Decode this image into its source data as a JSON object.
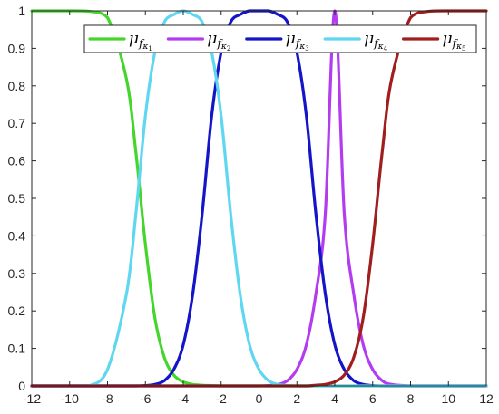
{
  "chart_data": {
    "type": "line",
    "title": "",
    "xlabel": "",
    "ylabel": "",
    "xlim": [
      -12,
      12
    ],
    "ylim": [
      0,
      1
    ],
    "xticks": [
      -12,
      -10,
      -8,
      -6,
      -4,
      -2,
      0,
      2,
      4,
      6,
      8,
      10,
      12
    ],
    "yticks": [
      0,
      0.1,
      0.2,
      0.3,
      0.4,
      0.5,
      0.6,
      0.7,
      0.8,
      0.9,
      1
    ],
    "grid": false,
    "legend": {
      "placement": "top",
      "orientation": "horizontal"
    },
    "x_sample": [
      -12,
      -11,
      -10,
      -9,
      -8,
      -7,
      -6.5,
      -6,
      -5.5,
      -5,
      -4.5,
      -4,
      -3.5,
      -3,
      -2.5,
      -2,
      -1.5,
      -1,
      -0.5,
      0,
      0.5,
      1,
      1.5,
      2,
      2.5,
      3,
      3.5,
      4,
      4.5,
      5,
      5.5,
      6,
      6.5,
      7,
      8,
      9,
      10,
      11,
      12
    ],
    "series": [
      {
        "name": "μ",
        "sub": "f",
        "subsub": "κ",
        "index": "1",
        "color": "#44d62c",
        "values": [
          1,
          1,
          1,
          0.999,
          0.982,
          0.818,
          0.622,
          0.378,
          0.182,
          0.076,
          0.029,
          0.011,
          0.004,
          0.002,
          0.001,
          0,
          0,
          0,
          0,
          0,
          0,
          0,
          0,
          0,
          0,
          0,
          0,
          0,
          0,
          0,
          0,
          0,
          0,
          0,
          0,
          0,
          0,
          0,
          0
        ]
      },
      {
        "name": "μ",
        "sub": "f",
        "subsub": "κ",
        "index": "2",
        "color": "#b43cf0",
        "values": [
          0,
          0,
          0,
          0,
          0,
          0,
          0,
          0,
          0,
          0,
          0,
          0,
          0,
          0,
          0,
          0,
          0,
          0,
          0,
          0,
          0.001,
          0.004,
          0.014,
          0.044,
          0.11,
          0.245,
          0.46,
          1,
          0.46,
          0.245,
          0.11,
          0.044,
          0.014,
          0.004,
          0,
          0,
          0,
          0,
          0
        ]
      },
      {
        "name": "μ",
        "sub": "f",
        "subsub": "κ",
        "index": "3",
        "color": "#1414c8",
        "values": [
          0,
          0,
          0,
          0,
          0,
          0,
          0,
          0.001,
          0.004,
          0.014,
          0.044,
          0.11,
          0.245,
          0.46,
          0.72,
          0.89,
          0.97,
          0.99,
          1,
          1,
          1,
          0.99,
          0.97,
          0.89,
          0.72,
          0.46,
          0.245,
          0.11,
          0.044,
          0.014,
          0.004,
          0.001,
          0,
          0,
          0,
          0,
          0,
          0,
          0
        ]
      },
      {
        "name": "μ",
        "sub": "f",
        "subsub": "κ",
        "index": "4",
        "color": "#5fd7f0",
        "values": [
          0,
          0,
          0,
          0,
          0.044,
          0.245,
          0.46,
          0.72,
          0.89,
          0.97,
          0.99,
          1,
          0.99,
          0.97,
          0.89,
          0.72,
          0.46,
          0.245,
          0.11,
          0.044,
          0.014,
          0.004,
          0.001,
          0,
          0,
          0,
          0,
          0,
          0,
          0,
          0,
          0,
          0,
          0,
          0,
          0,
          0,
          0,
          0
        ]
      },
      {
        "name": "μ",
        "sub": "f",
        "subsub": "κ",
        "index": "5",
        "color": "#a01e1e",
        "values": [
          0,
          0,
          0,
          0,
          0,
          0,
          0,
          0,
          0,
          0,
          0,
          0,
          0,
          0,
          0,
          0,
          0,
          0,
          0,
          0,
          0,
          0,
          0,
          0,
          0,
          0.002,
          0.004,
          0.011,
          0.029,
          0.076,
          0.182,
          0.378,
          0.622,
          0.818,
          0.982,
          0.999,
          1,
          1,
          1
        ]
      }
    ]
  }
}
